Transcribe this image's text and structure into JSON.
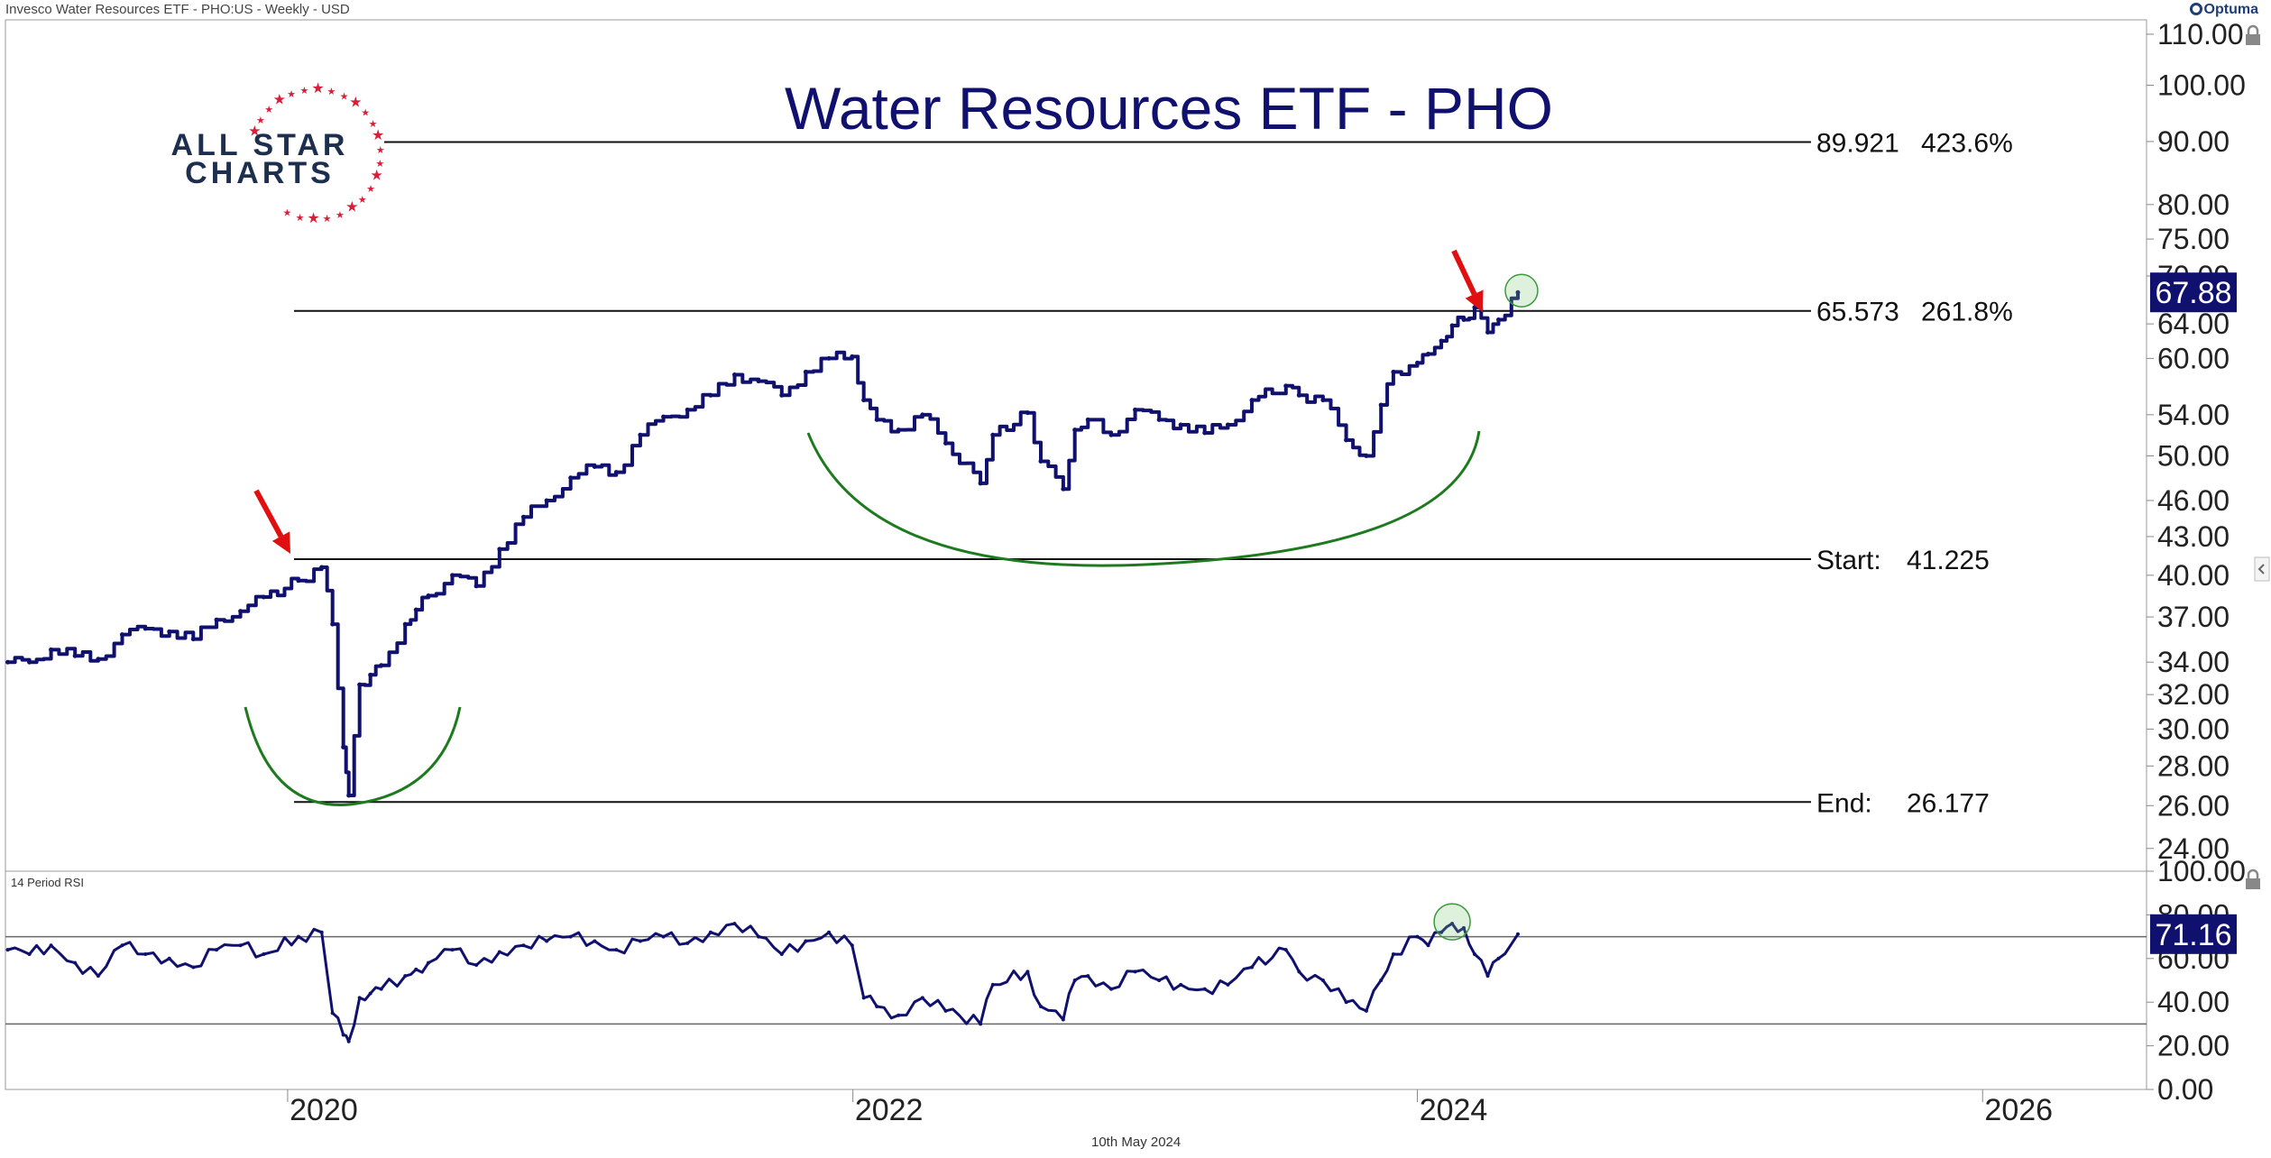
{
  "header": {
    "instrument": "Invesco Water Resources ETF - PHO:US - Weekly - USD",
    "brand": "Optuma",
    "date_footer": "10th May 2024"
  },
  "logo": {
    "line1": "ALL STAR",
    "line2": "CHARTS"
  },
  "colors": {
    "price": "#10106e",
    "rsi": "#10106e",
    "arrow": "#e01010",
    "arc": "#1e7a1e",
    "label_bg": "#10106e"
  },
  "rsi_panel": {
    "label": "14 Period RSI"
  },
  "chart_data": [
    {
      "type": "bar",
      "title": "Water Resources ETF - PHO",
      "y_scale": "log",
      "ylim": [
        23,
        113
      ],
      "xlim": [
        "2019-01-01",
        "2026-08-01"
      ],
      "x_ticks": [
        "2020",
        "2022",
        "2024",
        "2026"
      ],
      "y_ticks": [
        "110.00",
        "100.00",
        "90.00",
        "80.00",
        "75.00",
        "70.00",
        "64.00",
        "60.00",
        "54.00",
        "50.00",
        "46.00",
        "43.00",
        "40.00",
        "37.00",
        "34.00",
        "32.00",
        "30.00",
        "28.00",
        "26.00",
        "24.00"
      ],
      "last_value": "67.88",
      "fib_levels": [
        {
          "label": "89.921",
          "pct": "423.6%",
          "value": 89.921
        },
        {
          "label": "65.573",
          "pct": "261.8%",
          "value": 65.573
        },
        {
          "label": "Start:",
          "pct": "41.225",
          "value": 41.225
        },
        {
          "label": "End:",
          "pct": "26.177",
          "value": 26.177
        }
      ],
      "series": [
        {
          "type": "line",
          "x": [
            "2019-01-04",
            "2019-02-01",
            "2019-03-01",
            "2019-04-01",
            "2019-05-01",
            "2019-06-01",
            "2019-07-01",
            "2019-08-01",
            "2019-09-01",
            "2019-10-01",
            "2019-11-01",
            "2019-12-01",
            "2020-01-15",
            "2020-02-14",
            "2020-02-28",
            "2020-03-13",
            "2020-03-20",
            "2020-04-03",
            "2020-04-17",
            "2020-05-01",
            "2020-06-01",
            "2020-06-15",
            "2020-07-01",
            "2020-08-01",
            "2020-09-01",
            "2020-10-01",
            "2020-11-01",
            "2020-12-01",
            "2021-01-01",
            "2021-02-01",
            "2021-03-01",
            "2021-04-01",
            "2021-05-01",
            "2021-06-01",
            "2021-07-01",
            "2021-08-01",
            "2021-09-01",
            "2021-10-01",
            "2021-11-01",
            "2021-12-01",
            "2021-12-31",
            "2022-01-15",
            "2022-02-01",
            "2022-03-01",
            "2022-04-01",
            "2022-05-01",
            "2022-06-15",
            "2022-07-01",
            "2022-08-15",
            "2022-09-01",
            "2022-09-30",
            "2022-10-15",
            "2022-11-01",
            "2022-12-01",
            "2023-01-01",
            "2023-02-01",
            "2023-03-01",
            "2023-04-01",
            "2023-05-01",
            "2023-06-01",
            "2023-07-15",
            "2023-08-01",
            "2023-09-01",
            "2023-10-01",
            "2023-10-27",
            "2023-11-15",
            "2023-12-01",
            "2024-01-01",
            "2024-01-15",
            "2024-02-01",
            "2024-02-15",
            "2024-03-01",
            "2024-03-15",
            "2024-04-01",
            "2024-04-15",
            "2024-05-10"
          ],
          "values": [
            34.0,
            34.0,
            34.8,
            34.4,
            34.2,
            35.8,
            36.2,
            36.0,
            35.5,
            36.8,
            37.4,
            38.4,
            39.6,
            40.6,
            36.5,
            29.0,
            26.5,
            32.6,
            33.2,
            33.8,
            36.5,
            37.5,
            38.5,
            40.0,
            39.2,
            42.0,
            44.6,
            46.0,
            48.0,
            49.0,
            48.5,
            52.0,
            53.8,
            54.5,
            56.0,
            58.2,
            57.5,
            56.0,
            58.5,
            60.0,
            60.2,
            55.5,
            53.5,
            52.5,
            54.0,
            51.2,
            47.5,
            52.0,
            54.2,
            49.5,
            47.0,
            52.5,
            53.5,
            52.0,
            54.5,
            53.5,
            53.0,
            52.2,
            53.0,
            55.5,
            57.0,
            56.0,
            55.5,
            51.5,
            50.0,
            55.0,
            58.5,
            59.5,
            60.5,
            62.0,
            63.8,
            64.5,
            66.0,
            63.0,
            64.5,
            67.88
          ]
        }
      ]
    },
    {
      "type": "line",
      "title": "14 Period RSI",
      "ylim": [
        0,
        100
      ],
      "y_ticks": [
        "100.00",
        "80.00",
        "60.00",
        "40.00",
        "20.00",
        "0.00"
      ],
      "reference_lines": [
        70,
        30
      ],
      "last_value": "71.16",
      "series": [
        {
          "x": [
            "2019-01-04",
            "2019-02-01",
            "2019-03-01",
            "2019-04-01",
            "2019-05-01",
            "2019-06-01",
            "2019-07-01",
            "2019-08-01",
            "2019-09-01",
            "2019-10-01",
            "2019-11-01",
            "2019-12-01",
            "2020-01-15",
            "2020-02-14",
            "2020-02-28",
            "2020-03-13",
            "2020-03-20",
            "2020-04-03",
            "2020-04-17",
            "2020-05-01",
            "2020-06-01",
            "2020-06-15",
            "2020-07-01",
            "2020-08-01",
            "2020-09-01",
            "2020-10-01",
            "2020-11-01",
            "2020-12-01",
            "2021-01-01",
            "2021-02-01",
            "2021-03-01",
            "2021-04-01",
            "2021-05-01",
            "2021-06-01",
            "2021-07-01",
            "2021-08-01",
            "2021-09-01",
            "2021-10-01",
            "2021-11-01",
            "2021-12-01",
            "2021-12-31",
            "2022-01-15",
            "2022-02-01",
            "2022-03-01",
            "2022-04-01",
            "2022-05-01",
            "2022-06-15",
            "2022-07-01",
            "2022-08-15",
            "2022-09-01",
            "2022-09-30",
            "2022-10-15",
            "2022-11-01",
            "2022-12-01",
            "2023-01-01",
            "2023-02-01",
            "2023-03-01",
            "2023-04-01",
            "2023-05-01",
            "2023-06-01",
            "2023-07-15",
            "2023-08-01",
            "2023-09-01",
            "2023-10-01",
            "2023-10-27",
            "2023-11-15",
            "2023-12-01",
            "2024-01-01",
            "2024-01-15",
            "2024-02-01",
            "2024-02-15",
            "2024-03-01",
            "2024-03-15",
            "2024-04-01",
            "2024-04-15",
            "2024-05-10"
          ],
          "values": [
            64,
            62,
            66,
            58,
            52,
            66,
            62,
            60,
            56,
            64,
            66,
            62,
            70,
            72,
            35,
            25,
            22,
            42,
            44,
            46,
            52,
            55,
            58,
            64,
            57,
            63,
            66,
            68,
            70,
            68,
            64,
            68,
            70,
            67,
            72,
            76,
            70,
            62,
            68,
            72,
            66,
            42,
            38,
            34,
            42,
            36,
            30,
            48,
            54,
            38,
            32,
            50,
            52,
            46,
            54,
            50,
            48,
            46,
            48,
            56,
            64,
            54,
            50,
            40,
            36,
            50,
            62,
            70,
            66,
            72,
            76,
            74,
            62,
            52,
            60,
            71.16
          ]
        }
      ]
    }
  ],
  "annotations": {
    "arrows": [
      "arrow-2020",
      "arrow-2024"
    ],
    "arcs": [
      "arc-2020-low",
      "arc-2022-base"
    ]
  }
}
